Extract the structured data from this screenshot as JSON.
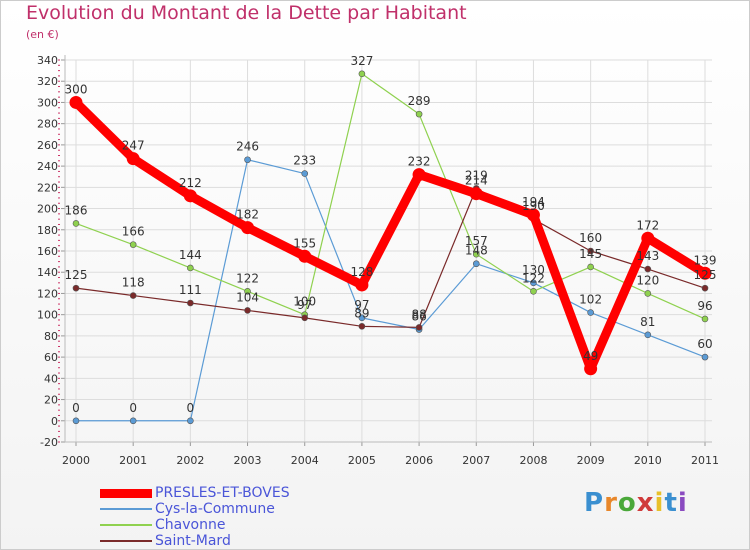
{
  "title": "Evolution du Montant de la Dette par Habitant",
  "subtitle": "(en €)",
  "logo": {
    "text": "Proxiti",
    "letters": [
      "P",
      "r",
      "o",
      "x",
      "i",
      "t",
      "i"
    ],
    "colors": [
      "#3a8fd0",
      "#e8872a",
      "#4aa83a",
      "#d03a3a",
      "#e8c02a",
      "#3a8fd0",
      "#8a4ac0"
    ]
  },
  "chart_data": {
    "type": "line",
    "title": "Evolution du Montant de la Dette par Habitant",
    "subtitle": "(en €)",
    "x": [
      "2000",
      "2001",
      "2002",
      "2003",
      "2004",
      "2005",
      "2006",
      "2007",
      "2008",
      "2009",
      "2010",
      "2011"
    ],
    "ylim": [
      -20,
      340
    ],
    "yticks": [
      -20,
      0,
      20,
      40,
      60,
      80,
      100,
      120,
      140,
      160,
      180,
      200,
      220,
      240,
      260,
      280,
      300,
      320,
      340
    ],
    "grid": true,
    "legend_position": "bottom-left",
    "series": [
      {
        "name": "PRESLES-ET-BOVES",
        "color": "#ff0000",
        "width": 9,
        "values": [
          300,
          247,
          212,
          182,
          155,
          128,
          232,
          214,
          194,
          49,
          172,
          139
        ],
        "labels": [
          "300",
          "247",
          "212",
          "182",
          "155",
          "128",
          "232",
          "214",
          "194",
          "49",
          "172",
          "139"
        ]
      },
      {
        "name": "Cys-la-Commune",
        "color": "#5b9bd5",
        "width": 1.2,
        "values": [
          0,
          0,
          0,
          246,
          233,
          97,
          86,
          148,
          130,
          102,
          81,
          60
        ],
        "labels": [
          "0",
          "0",
          "0",
          "246",
          "233",
          "97",
          "86",
          "148",
          "130",
          "102",
          "81",
          "60"
        ]
      },
      {
        "name": "Chavonne",
        "color": "#8fd14f",
        "width": 1.2,
        "values": [
          186,
          166,
          144,
          122,
          100,
          327,
          289,
          157,
          122,
          145,
          120,
          96
        ],
        "labels": [
          "186",
          "166",
          "144",
          "122",
          "100",
          "327",
          "289",
          "157",
          "122",
          "145",
          "120",
          "96"
        ]
      },
      {
        "name": "Saint-Mard",
        "color": "#7a2a2a",
        "width": 1.2,
        "values": [
          125,
          118,
          111,
          104,
          97,
          89,
          88,
          219,
          190,
          160,
          143,
          125
        ],
        "labels": [
          "125",
          "118",
          "111",
          "104",
          "97",
          "89",
          "88",
          "219",
          "190",
          "160",
          "143",
          "125"
        ]
      }
    ]
  }
}
